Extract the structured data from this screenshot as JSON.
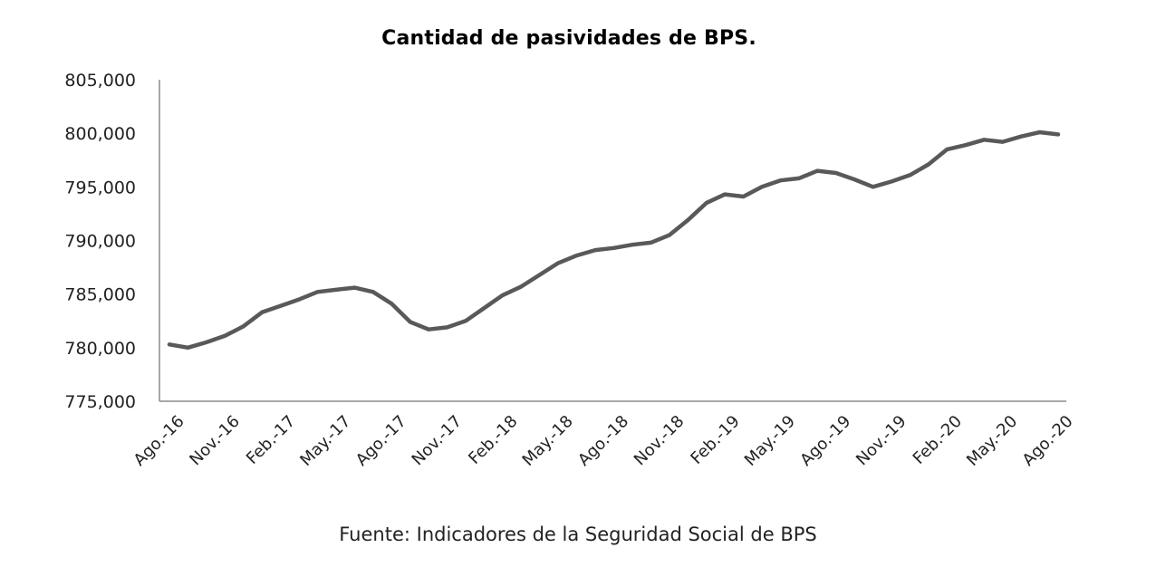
{
  "source": "Fuente: Indicadores de la Seguridad Social de BPS",
  "chart_data": {
    "type": "line",
    "title": "Cantidad de pasividades de BPS.",
    "xlabel": "",
    "ylabel": "",
    "ylim": [
      775000,
      805000
    ],
    "y_ticks": [
      775000,
      780000,
      785000,
      790000,
      795000,
      800000,
      805000
    ],
    "y_tick_labels": [
      "775,000",
      "780,000",
      "785,000",
      "790,000",
      "795,000",
      "800,000",
      "805,000"
    ],
    "x_tick_labels": [
      "Ago.-16",
      "Nov.-16",
      "Feb.-17",
      "May.-17",
      "Ago.-17",
      "Nov.-17",
      "Feb.-18",
      "May.-18",
      "Ago.-18",
      "Nov.-18",
      "Feb.-19",
      "May.-19",
      "Ago.-19",
      "Nov.-19",
      "Feb.-20",
      "May.-20",
      "Ago.-20"
    ],
    "categories": [
      "Ago.-16",
      "Sep.-16",
      "Oct.-16",
      "Nov.-16",
      "Dic.-16",
      "Ene.-17",
      "Feb.-17",
      "Mar.-17",
      "Abr.-17",
      "May.-17",
      "Jun.-17",
      "Jul.-17",
      "Ago.-17",
      "Sep.-17",
      "Oct.-17",
      "Nov.-17",
      "Dic.-17",
      "Ene.-18",
      "Feb.-18",
      "Mar.-18",
      "Abr.-18",
      "May.-18",
      "Jun.-18",
      "Jul.-18",
      "Ago.-18",
      "Sep.-18",
      "Oct.-18",
      "Nov.-18",
      "Dic.-18",
      "Ene.-19",
      "Feb.-19",
      "Mar.-19",
      "Abr.-19",
      "May.-19",
      "Jun.-19",
      "Jul.-19",
      "Ago.-19",
      "Sep.-19",
      "Oct.-19",
      "Nov.-19",
      "Dic.-19",
      "Ene.-20",
      "Feb.-20",
      "Mar.-20",
      "Abr.-20",
      "May.-20",
      "Jun.-20",
      "Jul.-20",
      "Ago.-20"
    ],
    "series": [
      {
        "color": "#595959",
        "values": [
          780300,
          780000,
          780500,
          781100,
          782000,
          783300,
          783900,
          784500,
          785200,
          785400,
          785600,
          785200,
          784100,
          782400,
          781700,
          781900,
          782500,
          783700,
          784900,
          785700,
          786800,
          787900,
          788600,
          789100,
          789300,
          789600,
          789800,
          790500,
          791900,
          793500,
          794300,
          794100,
          795000,
          795600,
          795800,
          796500,
          796300,
          795700,
          795000,
          795500,
          796100,
          797100,
          798500,
          798900,
          799400,
          799200,
          799700,
          800100,
          799900
        ]
      }
    ],
    "grid": false,
    "legend": "none"
  }
}
